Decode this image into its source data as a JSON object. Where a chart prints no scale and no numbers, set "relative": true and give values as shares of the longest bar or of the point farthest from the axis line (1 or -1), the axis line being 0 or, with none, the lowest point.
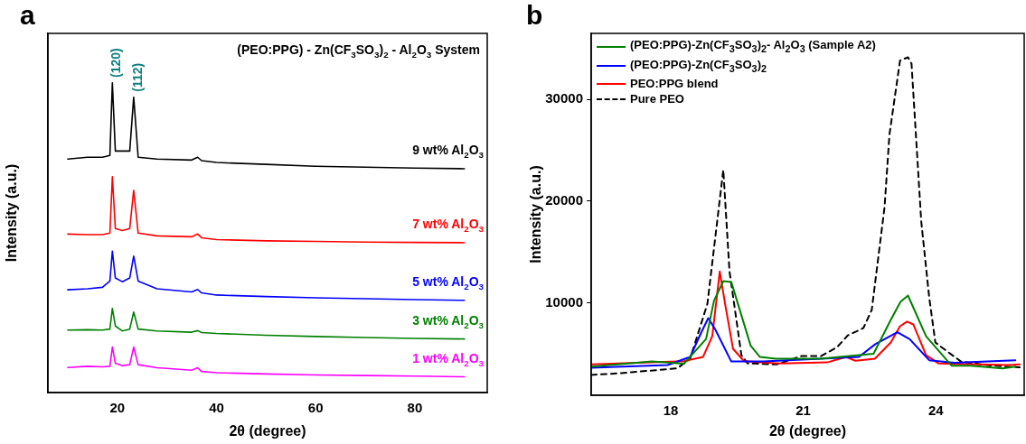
{
  "chart_data": [
    {
      "type": "line",
      "title": "a",
      "xlabel": "2θ (degree)",
      "ylabel": "Intensity (a.u.)",
      "relative": true,
      "tick_labels": "x",
      "marker": "none",
      "legend": false,
      "x": [
        10,
        14,
        17,
        18.5,
        19,
        19.6,
        21,
        22.5,
        23.3,
        24.2,
        28,
        35,
        36.2,
        37,
        40,
        50,
        60,
        70,
        80,
        90
      ],
      "xlim": [
        6,
        94.6
      ],
      "xticks": [
        20,
        40,
        60,
        80
      ],
      "annotations": [
        "(PEO:PPG) - Zn(CF$_{3}$SO$_{3}$)$_{2}$ - Al$_{2}$O$_{3}$ System",
        {
          "text": "(120)",
          "x": 19,
          "y": 1.0
        },
        {
          "text": "(112)",
          "x": 23.3,
          "y": 0.954
        }
      ],
      "series": [
        {
          "name": "9 wt% Al$_{2}$O$_{3}$",
          "color": "#000000",
          "values": [
            0.754,
            0.76,
            0.76,
            0.766,
            1.0,
            0.78,
            0.78,
            0.78,
            0.954,
            0.76,
            0.754,
            0.751,
            0.76,
            0.749,
            0.743,
            0.737,
            0.731,
            0.728,
            0.725,
            0.723
          ]
        },
        {
          "name": "7 wt% Al$_{2}$O$_{3}$",
          "color": "#ff0000",
          "values": [
            0.512,
            0.51,
            0.51,
            0.515,
            0.697,
            0.53,
            0.523,
            0.53,
            0.653,
            0.515,
            0.506,
            0.503,
            0.512,
            0.5,
            0.494,
            0.49,
            0.488,
            0.486,
            0.485,
            0.484
          ]
        },
        {
          "name": "5 wt% Al$_{2}$O$_{3}$",
          "color": "#0000ff",
          "values": [
            0.332,
            0.335,
            0.34,
            0.36,
            0.457,
            0.37,
            0.358,
            0.37,
            0.441,
            0.36,
            0.335,
            0.325,
            0.333,
            0.322,
            0.315,
            0.31,
            0.306,
            0.303,
            0.3,
            0.298
          ]
        },
        {
          "name": "3 wt% Al$_{2}$O$_{3}$",
          "color": "#008000",
          "values": [
            0.202,
            0.203,
            0.202,
            0.205,
            0.272,
            0.215,
            0.199,
            0.205,
            0.26,
            0.205,
            0.199,
            0.195,
            0.2,
            0.194,
            0.191,
            0.185,
            0.181,
            0.178,
            0.175,
            0.173
          ]
        },
        {
          "name": "1 wt% Al$_{2}$O$_{3}$",
          "color": "#ff00ff",
          "values": [
            0.081,
            0.085,
            0.083,
            0.085,
            0.147,
            0.095,
            0.087,
            0.09,
            0.147,
            0.09,
            0.08,
            0.072,
            0.08,
            0.068,
            0.064,
            0.06,
            0.057,
            0.055,
            0.053,
            0.051
          ]
        }
      ]
    },
    {
      "type": "line",
      "title": "b",
      "xlabel": "2θ (degree)",
      "ylabel": "Intensity (a.u.)",
      "marker": "none",
      "legend": "top left",
      "xlim": [
        16.2,
        26
      ],
      "xticks": [
        18,
        21,
        24
      ],
      "ylim": [
        900,
        36500
      ],
      "yticks": [
        10000,
        20000,
        30000
      ],
      "series": [
        {
          "name": "(PEO:PPG)-Zn(CF$_{3}$SO$_{3}$)$_{2}$- Al$_{2}$O$_{3}$ (Sample A2)",
          "color": "#008000",
          "x": [
            16.2,
            17.57,
            18.3,
            18.8,
            18.98,
            19.19,
            19.37,
            19.81,
            20.02,
            20.38,
            21.39,
            22.59,
            22.98,
            23.2,
            23.37,
            23.78,
            24.36,
            24.79,
            25.51,
            25.8
          ],
          "values": [
            3710,
            4220,
            4000,
            6440,
            10210,
            12130,
            12050,
            5770,
            4670,
            4500,
            4500,
            4980,
            8310,
            10090,
            10710,
            6710,
            3800,
            3800,
            3550,
            3710
          ]
        },
        {
          "name": "(PEO:PPG)-Zn(CF$_{3}$SO$_{3}$)$_{2}$",
          "color": "#0000ff",
          "x": [
            16.2,
            17.93,
            18.44,
            18.69,
            18.85,
            19.01,
            19.37,
            20.1,
            22.26,
            22.63,
            23.13,
            23.41,
            23.85,
            24.42,
            25.8
          ],
          "values": [
            3610,
            3870,
            4670,
            7070,
            8490,
            7360,
            4220,
            4220,
            4670,
            5930,
            7100,
            6410,
            4350,
            4090,
            4350
          ]
        },
        {
          "name": "PEO:PPG blend",
          "color": "#ff0000",
          "x": [
            16.2,
            18.3,
            18.73,
            18.94,
            19.11,
            19.23,
            19.41,
            19.66,
            20.46,
            21.54,
            21.97,
            22.18,
            22.62,
            22.98,
            23.19,
            23.35,
            23.49,
            23.78,
            24.06,
            25.65,
            25.9
          ],
          "values": [
            3950,
            4250,
            4670,
            6710,
            13080,
            9900,
            5470,
            4250,
            4040,
            4130,
            4670,
            4300,
            4500,
            6090,
            7690,
            8150,
            7870,
            4840,
            4040,
            3870,
            3950
          ]
        },
        {
          "name": "Pure PEO",
          "color": "#000000",
          "line_style": "dashed",
          "x": [
            16.2,
            16.85,
            18.15,
            18.44,
            18.83,
            19.19,
            19.33,
            19.6,
            19.74,
            20.4,
            20.96,
            21.4,
            21.76,
            22.01,
            22.36,
            22.55,
            22.84,
            22.95,
            23.19,
            23.37,
            23.45,
            23.67,
            23.85,
            23.99,
            24.28,
            24.57,
            25.15,
            25.65,
            25.9
          ],
          "values": [
            2900,
            3070,
            3550,
            4500,
            9900,
            23070,
            13100,
            4840,
            4040,
            3930,
            4760,
            4760,
            5610,
            6800,
            7510,
            9290,
            19420,
            26530,
            33830,
            34150,
            33520,
            18000,
            10530,
            6090,
            5140,
            4220,
            3870,
            3700,
            3650
          ]
        }
      ]
    }
  ]
}
